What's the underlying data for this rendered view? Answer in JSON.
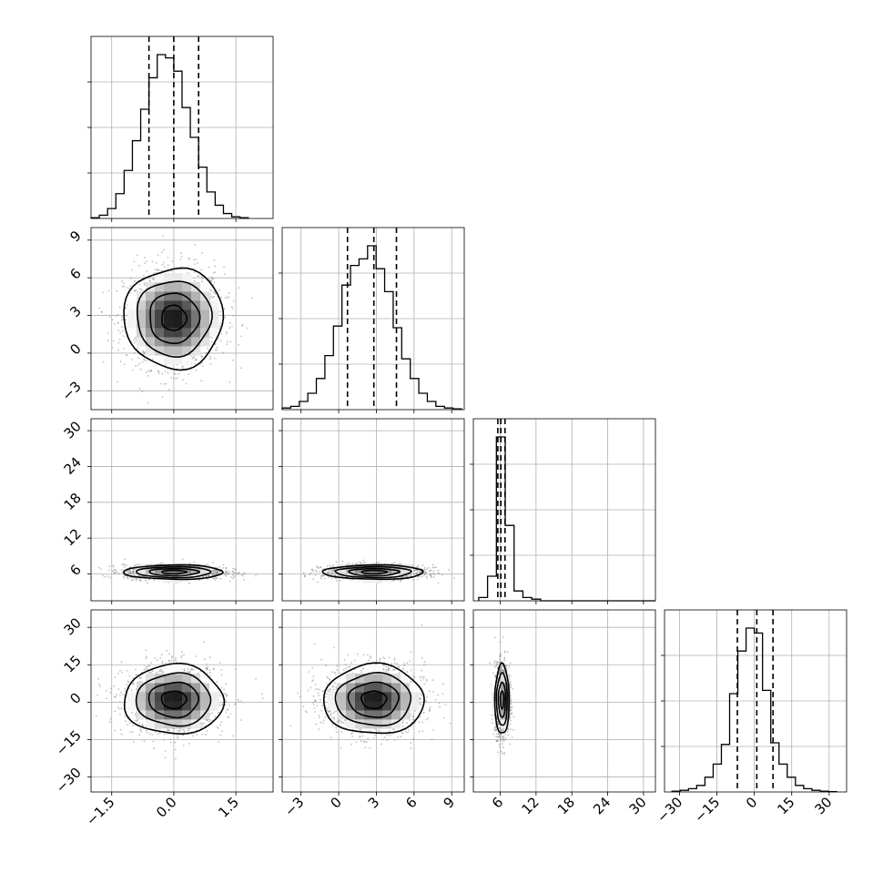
{
  "chart_data": {
    "type": "corner",
    "parameters": [
      "",
      "",
      "",
      ""
    ],
    "ranges": [
      [
        -2.0,
        2.4
      ],
      [
        -4.5,
        10.0
      ],
      [
        1.5,
        32.0
      ],
      [
        -36.0,
        37.0
      ]
    ],
    "ticks": [
      [
        "−1.5",
        "0.0",
        "1.5"
      ],
      [
        "−3",
        "0",
        "3",
        "6",
        "9"
      ],
      [
        "6",
        "12",
        "18",
        "24",
        "30"
      ],
      [
        "−30",
        "−15",
        "0",
        "15",
        "30"
      ]
    ],
    "tick_values": [
      [
        -1.5,
        0.0,
        1.5
      ],
      [
        -3,
        0,
        3,
        6,
        9
      ],
      [
        6,
        12,
        18,
        24,
        30
      ],
      [
        -30,
        -15,
        0,
        15,
        30
      ]
    ],
    "histograms": [
      {
        "param": 0,
        "bin_edges_start": -2.0,
        "bin_width": 0.2,
        "counts": [
          0.005,
          0.02,
          0.06,
          0.15,
          0.29,
          0.47,
          0.66,
          0.85,
          0.99,
          0.97,
          0.89,
          0.67,
          0.49,
          0.31,
          0.16,
          0.08,
          0.03,
          0.01,
          0.005
        ]
      },
      {
        "param": 1,
        "bin_edges_start": -4.5,
        "bin_width": 0.68,
        "counts": [
          0.01,
          0.02,
          0.05,
          0.1,
          0.19,
          0.33,
          0.51,
          0.76,
          0.88,
          0.92,
          1.0,
          0.86,
          0.72,
          0.5,
          0.31,
          0.19,
          0.1,
          0.05,
          0.02,
          0.01,
          0.005
        ]
      },
      {
        "param": 2,
        "bin_edges_start": 2.4,
        "bin_width": 1.48,
        "counts": [
          0.02,
          0.15,
          1.0,
          0.46,
          0.06,
          0.02,
          0.01,
          0.0,
          0.0,
          0.0,
          0.0,
          0.0,
          0.0,
          0.0,
          0.0,
          0.0,
          0.0,
          0.0,
          0.0,
          0.0
        ]
      },
      {
        "param": 3,
        "bin_edges_start": -33.0,
        "bin_width": 3.3,
        "counts": [
          0.005,
          0.01,
          0.02,
          0.04,
          0.09,
          0.17,
          0.29,
          0.6,
          0.86,
          1.0,
          0.97,
          0.62,
          0.3,
          0.17,
          0.09,
          0.04,
          0.02,
          0.01,
          0.005,
          0.002
        ]
      }
    ],
    "quantiles": [
      [
        -0.6,
        0.0,
        0.6
      ],
      [
        0.7,
        2.8,
        4.6
      ],
      [
        5.6,
        6.1,
        6.8
      ],
      [
        -6.8,
        1.0,
        7.5
      ]
    ],
    "distributions": [
      {
        "param": 0,
        "mean": 0.0,
        "sd": 0.6
      },
      {
        "param": 1,
        "mean": 2.8,
        "sd": 2.0
      },
      {
        "param": 2,
        "mean": 6.3,
        "sd": 0.6
      },
      {
        "param": 3,
        "mean": 1.0,
        "sd": 7.0
      }
    ],
    "axis_visibility": {
      "x_tick_labels_bottom_row_only": true,
      "y_tick_labels_first_column_only": true
    },
    "grid": true,
    "contour_levels_sigma": [
      0.5,
      1.0,
      1.5,
      2.0
    ],
    "colors": {
      "points": "#8c8c8c",
      "line": "#000000",
      "grid": "#b0b0b0",
      "density": "#000000"
    }
  }
}
